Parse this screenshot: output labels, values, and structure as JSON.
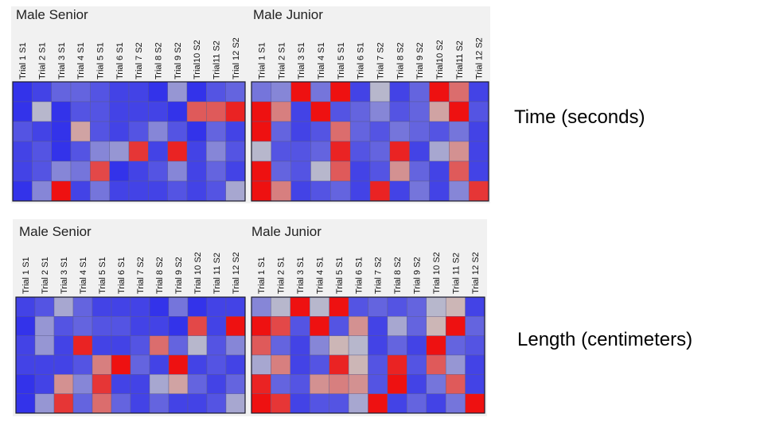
{
  "side_labels": [
    "Time (seconds)",
    "Length (centimeters)"
  ],
  "colors": {
    "low": "#2222ee",
    "mid": "#c8c8c8",
    "high": "#ee1111"
  },
  "chart_data": [
    {
      "type": "heatmap",
      "panels": [
        {
          "title": "Male Senior",
          "columns": [
            "Trial 1 S1",
            "Trial 2 S1",
            "Trial 3 S1",
            "Trial 4 S1",
            "Trial 5 S1",
            "Trial 6 S1",
            "Trial 7 S2",
            "Trial 8 S2",
            "Trial 9 S2",
            "Trial10 S2",
            "Trial11 S2",
            "Trial 12 S2"
          ],
          "values": [
            [
              0.05,
              0.1,
              0.2,
              0.2,
              0.15,
              0.1,
              0.1,
              0.05,
              0.35,
              0.05,
              0.15,
              0.2
            ],
            [
              0.05,
              0.45,
              0.05,
              0.15,
              0.15,
              0.1,
              0.1,
              0.1,
              0.05,
              0.8,
              0.8,
              0.95
            ],
            [
              0.15,
              0.1,
              0.05,
              0.6,
              0.15,
              0.1,
              0.15,
              0.3,
              0.15,
              0.05,
              0.2,
              0.1
            ],
            [
              0.1,
              0.15,
              0.05,
              0.15,
              0.3,
              0.35,
              0.9,
              0.1,
              0.95,
              0.1,
              0.3,
              0.15
            ],
            [
              0.1,
              0.15,
              0.3,
              0.25,
              0.85,
              0.05,
              0.1,
              0.15,
              0.3,
              0.1,
              0.2,
              0.1
            ],
            [
              0.05,
              0.3,
              1.0,
              0.1,
              0.25,
              0.1,
              0.1,
              0.1,
              0.15,
              0.1,
              0.15,
              0.4
            ]
          ]
        },
        {
          "title": "Male Junior",
          "columns": [
            "Trial 1 S1",
            "Trial 2 S1",
            "Trial 3 S1",
            "Trial 4 S1",
            "Trial 5 S1",
            "Trial 6 S1",
            "Trial 7 S2",
            "Trial 8 S2",
            "Trial 9 S2",
            "Trial10 S2",
            "Trial11 S2",
            "Trial 12 S2"
          ],
          "values": [
            [
              0.25,
              0.3,
              1.0,
              0.25,
              1.0,
              0.1,
              0.45,
              0.1,
              0.2,
              1.0,
              0.75,
              0.1
            ],
            [
              1.0,
              0.7,
              0.1,
              1.0,
              0.15,
              0.2,
              0.3,
              0.15,
              0.2,
              0.6,
              1.0,
              0.15
            ],
            [
              1.0,
              0.2,
              0.1,
              0.15,
              0.75,
              0.2,
              0.15,
              0.25,
              0.2,
              0.15,
              0.25,
              0.1
            ],
            [
              0.45,
              0.15,
              0.15,
              0.2,
              0.95,
              0.15,
              0.2,
              0.95,
              0.1,
              0.4,
              0.65,
              0.1
            ],
            [
              1.0,
              0.2,
              0.15,
              0.45,
              0.8,
              0.1,
              0.15,
              0.65,
              0.2,
              0.1,
              0.8,
              0.1
            ],
            [
              1.0,
              0.7,
              0.1,
              0.15,
              0.2,
              0.1,
              0.95,
              0.1,
              0.25,
              0.1,
              0.3,
              0.9
            ]
          ]
        }
      ]
    },
    {
      "type": "heatmap",
      "panels": [
        {
          "title": "Male Senior",
          "columns": [
            "Trial 1 S1",
            "Trial 2 S1",
            "Trial 3 S1",
            "Trial 4 S1",
            "Trial 5 S1",
            "Trial 6 S1",
            "Trial 7 S2",
            "Trial 8 S2",
            "Trial 9 S2",
            "Trial 10 S2",
            "Trial 11 S2",
            "Trial 12 S2"
          ],
          "values": [
            [
              0.1,
              0.15,
              0.4,
              0.2,
              0.1,
              0.1,
              0.1,
              0.05,
              0.25,
              0.05,
              0.1,
              0.1
            ],
            [
              0.05,
              0.35,
              0.15,
              0.2,
              0.15,
              0.15,
              0.1,
              0.1,
              0.05,
              0.85,
              0.1,
              1.0
            ],
            [
              0.1,
              0.35,
              0.1,
              0.95,
              0.1,
              0.1,
              0.15,
              0.75,
              0.2,
              0.45,
              0.15,
              0.3
            ],
            [
              0.1,
              0.1,
              0.1,
              0.15,
              0.7,
              1.0,
              0.2,
              0.1,
              1.0,
              0.1,
              0.15,
              0.1
            ],
            [
              0.05,
              0.1,
              0.65,
              0.3,
              0.9,
              0.1,
              0.1,
              0.4,
              0.6,
              0.2,
              0.1,
              0.2
            ],
            [
              0.05,
              0.35,
              0.9,
              0.2,
              0.75,
              0.2,
              0.1,
              0.2,
              0.1,
              0.1,
              0.15,
              0.4
            ]
          ]
        },
        {
          "title": "Male Junior",
          "columns": [
            "Trial 1 S1",
            "Trial 2 S1",
            "Trial 3 S1",
            "Trial 4 S1",
            "Trial 5 S1",
            "Trial 6 S1",
            "Trial 7 S2",
            "Trial 8 S2",
            "Trial 9 S2",
            "Trial 10 S2",
            "Trial 11 S2",
            "Trial 12 S2"
          ],
          "values": [
            [
              0.3,
              0.45,
              1.0,
              0.45,
              1.0,
              0.15,
              0.2,
              0.15,
              0.2,
              0.45,
              0.55,
              0.1
            ],
            [
              1.0,
              0.85,
              0.15,
              1.0,
              0.15,
              0.65,
              0.1,
              0.4,
              0.2,
              0.55,
              1.0,
              0.2
            ],
            [
              0.8,
              0.2,
              0.1,
              0.3,
              0.55,
              0.45,
              0.1,
              0.2,
              0.1,
              1.0,
              0.2,
              0.15
            ],
            [
              0.4,
              0.7,
              0.1,
              0.15,
              0.95,
              0.55,
              0.15,
              0.95,
              0.15,
              0.8,
              0.35,
              0.1
            ],
            [
              0.95,
              0.2,
              0.15,
              0.65,
              0.7,
              0.65,
              0.15,
              1.0,
              0.1,
              0.25,
              0.8,
              0.1
            ],
            [
              1.0,
              0.9,
              0.1,
              0.15,
              0.15,
              0.4,
              1.0,
              0.1,
              0.2,
              0.1,
              0.25,
              1.0
            ]
          ]
        }
      ]
    }
  ]
}
